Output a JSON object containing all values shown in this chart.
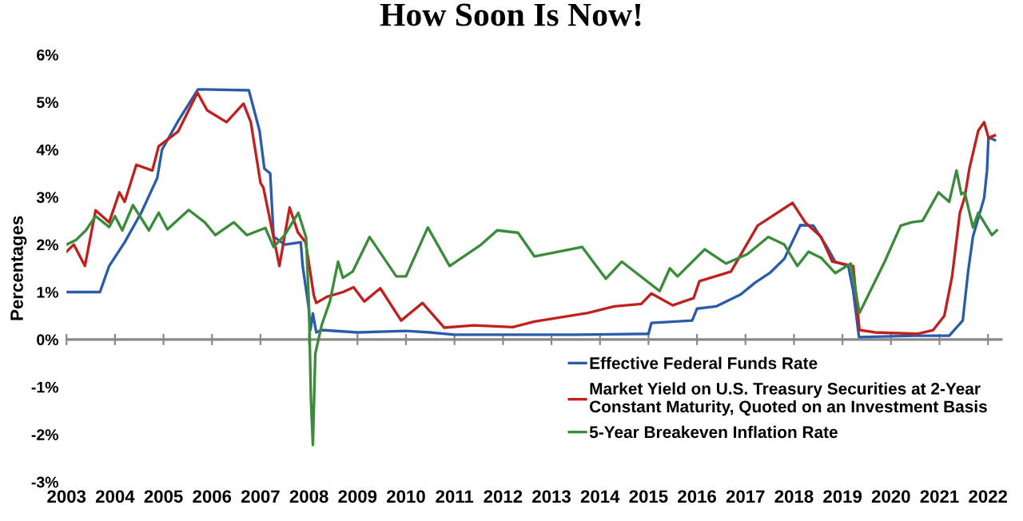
{
  "chart_data": {
    "type": "line",
    "title": "How Soon Is Now!",
    "ylabel": "Percentages",
    "xlim": [
      2003,
      2022.3
    ],
    "xticks": [
      2003,
      2004,
      2005,
      2006,
      2007,
      2008,
      2009,
      2010,
      2011,
      2012,
      2013,
      2014,
      2015,
      2016,
      2017,
      2018,
      2019,
      2020,
      2021,
      2022
    ],
    "ylim": [
      -3,
      6
    ],
    "yticks": [
      {
        "value": -3,
        "label": "-3%"
      },
      {
        "value": -2,
        "label": "-2%"
      },
      {
        "value": -1,
        "label": "-1%"
      },
      {
        "value": 0,
        "label": "0%"
      },
      {
        "value": 1,
        "label": "1%"
      },
      {
        "value": 2,
        "label": "2%"
      },
      {
        "value": 3,
        "label": "3%"
      },
      {
        "value": 4,
        "label": "4%"
      },
      {
        "value": 5,
        "label": "5%"
      },
      {
        "value": 6,
        "label": "6%"
      }
    ],
    "grid": false,
    "ref_lines": [
      {
        "axis": "y",
        "value": 0,
        "color": "#888888"
      }
    ],
    "legend": "bottom right",
    "marker": "none",
    "line_style": "solid",
    "series": [
      {
        "name": "Effective Federal Funds Rate",
        "color": "#2a5caa",
        "x": [
          2003.0,
          2003.69,
          2003.88,
          2004.2,
          2004.54,
          2004.87,
          2004.97,
          2005.3,
          2005.71,
          2006.76,
          2006.98,
          2007.08,
          2007.2,
          2007.27,
          2007.5,
          2007.83,
          2007.87,
          2007.99,
          2008.03,
          2008.08,
          2008.15,
          2008.26,
          2009.0,
          2010.0,
          2010.5,
          2011.0,
          2012.5,
          2013.5,
          2015.0,
          2015.06,
          2015.9,
          2016.0,
          2016.4,
          2016.9,
          2017.2,
          2017.5,
          2017.8,
          2018.13,
          2018.4,
          2018.68,
          2018.85,
          2019.12,
          2019.22,
          2019.34,
          2020.5,
          2021.2,
          2021.48,
          2021.59,
          2021.69,
          2021.92,
          2021.98,
          2022.01,
          2022.14
        ],
        "values": [
          1.0,
          1.0,
          1.55,
          2.05,
          2.67,
          3.4,
          4.0,
          4.6,
          5.27,
          5.25,
          4.4,
          3.6,
          3.5,
          2.17,
          2.0,
          2.05,
          1.55,
          0.7,
          0.2,
          0.55,
          0.15,
          0.2,
          0.15,
          0.18,
          0.15,
          0.1,
          0.1,
          0.1,
          0.12,
          0.35,
          0.4,
          0.65,
          0.7,
          0.95,
          1.2,
          1.4,
          1.7,
          2.41,
          2.4,
          1.95,
          1.64,
          1.55,
          1.03,
          0.05,
          0.08,
          0.08,
          0.4,
          1.43,
          2.17,
          2.98,
          3.56,
          4.26,
          4.2
        ]
      },
      {
        "name": "Market Yield on U.S. Treasury Securities at 2-Year\nConstant Maturity, Quoted on an Investment Basis",
        "color": "#c0201e",
        "x": [
          2003.0,
          2003.15,
          2003.38,
          2003.6,
          2003.88,
          2004.09,
          2004.2,
          2004.44,
          2004.77,
          2004.9,
          2005.3,
          2005.7,
          2005.9,
          2006.3,
          2006.65,
          2006.8,
          2007.0,
          2007.06,
          2007.39,
          2007.6,
          2007.77,
          2007.93,
          2008.1,
          2008.15,
          2008.37,
          2008.7,
          2008.92,
          2009.14,
          2009.47,
          2009.9,
          2010.34,
          2010.79,
          2011.4,
          2012.2,
          2012.65,
          2013.75,
          2014.3,
          2014.85,
          2015.06,
          2015.5,
          2015.72,
          2015.93,
          2016.05,
          2016.7,
          2017.25,
          2017.97,
          2018.23,
          2018.56,
          2018.79,
          2019.22,
          2019.35,
          2019.67,
          2020.54,
          2020.87,
          2021.1,
          2021.26,
          2021.42,
          2021.52,
          2021.62,
          2021.8,
          2021.92,
          2022.01,
          2022.14
        ],
        "values": [
          1.85,
          2.0,
          1.55,
          2.72,
          2.47,
          3.1,
          2.9,
          3.68,
          3.56,
          4.07,
          4.38,
          5.2,
          4.83,
          4.58,
          4.97,
          4.58,
          3.3,
          3.2,
          1.55,
          2.78,
          2.26,
          2.05,
          0.93,
          0.77,
          0.9,
          1.0,
          1.1,
          0.8,
          1.08,
          0.4,
          0.77,
          0.25,
          0.3,
          0.26,
          0.38,
          0.56,
          0.7,
          0.75,
          0.97,
          0.72,
          0.8,
          0.87,
          1.23,
          1.43,
          2.4,
          2.88,
          2.47,
          2.16,
          1.64,
          1.55,
          0.2,
          0.15,
          0.12,
          0.2,
          0.5,
          1.33,
          2.67,
          3.0,
          3.62,
          4.4,
          4.58,
          4.25,
          4.3
        ]
      },
      {
        "name": "5-Year Breakeven Inflation Rate",
        "color": "#3a8c3a",
        "x": [
          2003.0,
          2003.2,
          2003.4,
          2003.6,
          2003.88,
          2004.0,
          2004.15,
          2004.37,
          2004.7,
          2004.9,
          2005.08,
          2005.52,
          2005.85,
          2006.07,
          2006.45,
          2006.72,
          2007.1,
          2007.27,
          2007.5,
          2007.78,
          2007.94,
          2008.0,
          2008.04,
          2008.08,
          2008.13,
          2008.26,
          2008.43,
          2008.6,
          2008.7,
          2008.9,
          2009.25,
          2009.8,
          2010.0,
          2010.45,
          2010.9,
          2011.55,
          2011.88,
          2012.31,
          2012.65,
          2013.63,
          2014.12,
          2014.45,
          2015.23,
          2015.44,
          2015.6,
          2016.16,
          2016.6,
          2017.04,
          2017.47,
          2017.8,
          2018.07,
          2018.3,
          2018.56,
          2018.85,
          2019.17,
          2019.35,
          2019.5,
          2019.87,
          2020.2,
          2020.43,
          2020.65,
          2020.98,
          2021.2,
          2021.35,
          2021.45,
          2021.52,
          2021.69,
          2021.8,
          2022.08,
          2022.18
        ],
        "values": [
          2.0,
          2.1,
          2.3,
          2.6,
          2.37,
          2.6,
          2.3,
          2.83,
          2.3,
          2.67,
          2.32,
          2.73,
          2.47,
          2.2,
          2.47,
          2.2,
          2.35,
          1.95,
          2.2,
          2.67,
          2.15,
          0.7,
          -1.25,
          -2.22,
          -0.3,
          0.3,
          0.8,
          1.64,
          1.3,
          1.43,
          2.16,
          1.33,
          1.33,
          2.36,
          1.55,
          2.0,
          2.3,
          2.25,
          1.75,
          1.95,
          1.28,
          1.64,
          1.02,
          1.5,
          1.33,
          1.9,
          1.6,
          1.8,
          2.16,
          2.0,
          1.55,
          1.85,
          1.72,
          1.4,
          1.6,
          0.56,
          0.87,
          1.64,
          2.4,
          2.47,
          2.5,
          3.1,
          2.9,
          3.56,
          3.06,
          3.1,
          2.36,
          2.67,
          2.2,
          2.3
        ]
      }
    ]
  }
}
